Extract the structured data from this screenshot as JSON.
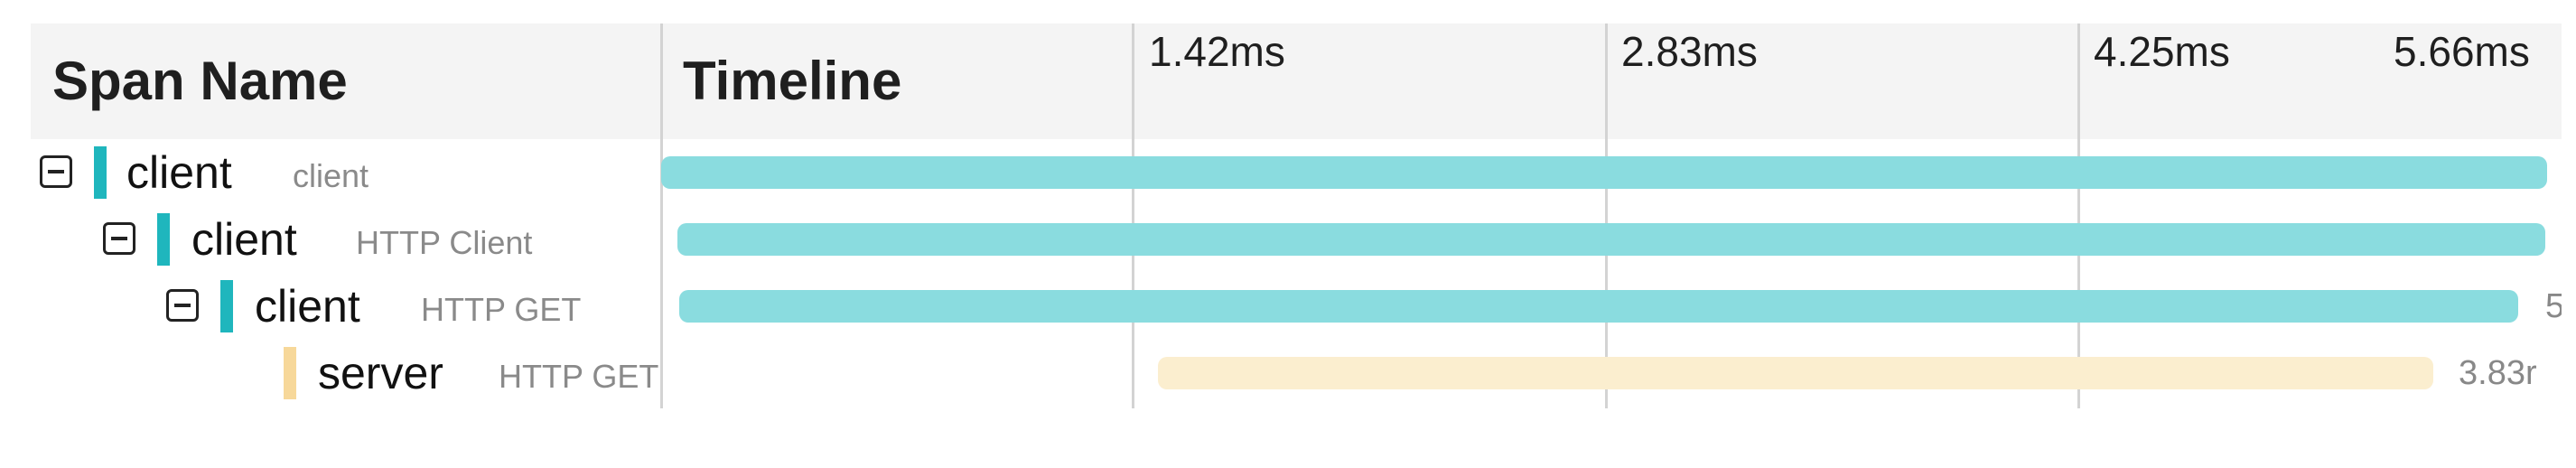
{
  "header": {
    "span_name_title": "Span Name",
    "timeline_title": "Timeline"
  },
  "ticks": [
    "1.42ms",
    "2.83ms",
    "4.25ms",
    "5.66ms"
  ],
  "colors": {
    "client": "#1fb6bd",
    "client_bar": "#8adcdf",
    "server": "#f7d89a",
    "server_bar": "#fbeecf"
  },
  "spans": [
    {
      "name": "client",
      "service": "client",
      "kind": "client",
      "collapsible": true,
      "duration_label": ""
    },
    {
      "name": "client",
      "service": "HTTP Client",
      "kind": "client",
      "collapsible": true,
      "duration_label": ""
    },
    {
      "name": "client",
      "service": "HTTP GET",
      "kind": "client",
      "collapsible": true,
      "duration_label": "5"
    },
    {
      "name": "server",
      "service": "HTTP GET",
      "kind": "server",
      "collapsible": false,
      "duration_label": "3.83r"
    }
  ]
}
